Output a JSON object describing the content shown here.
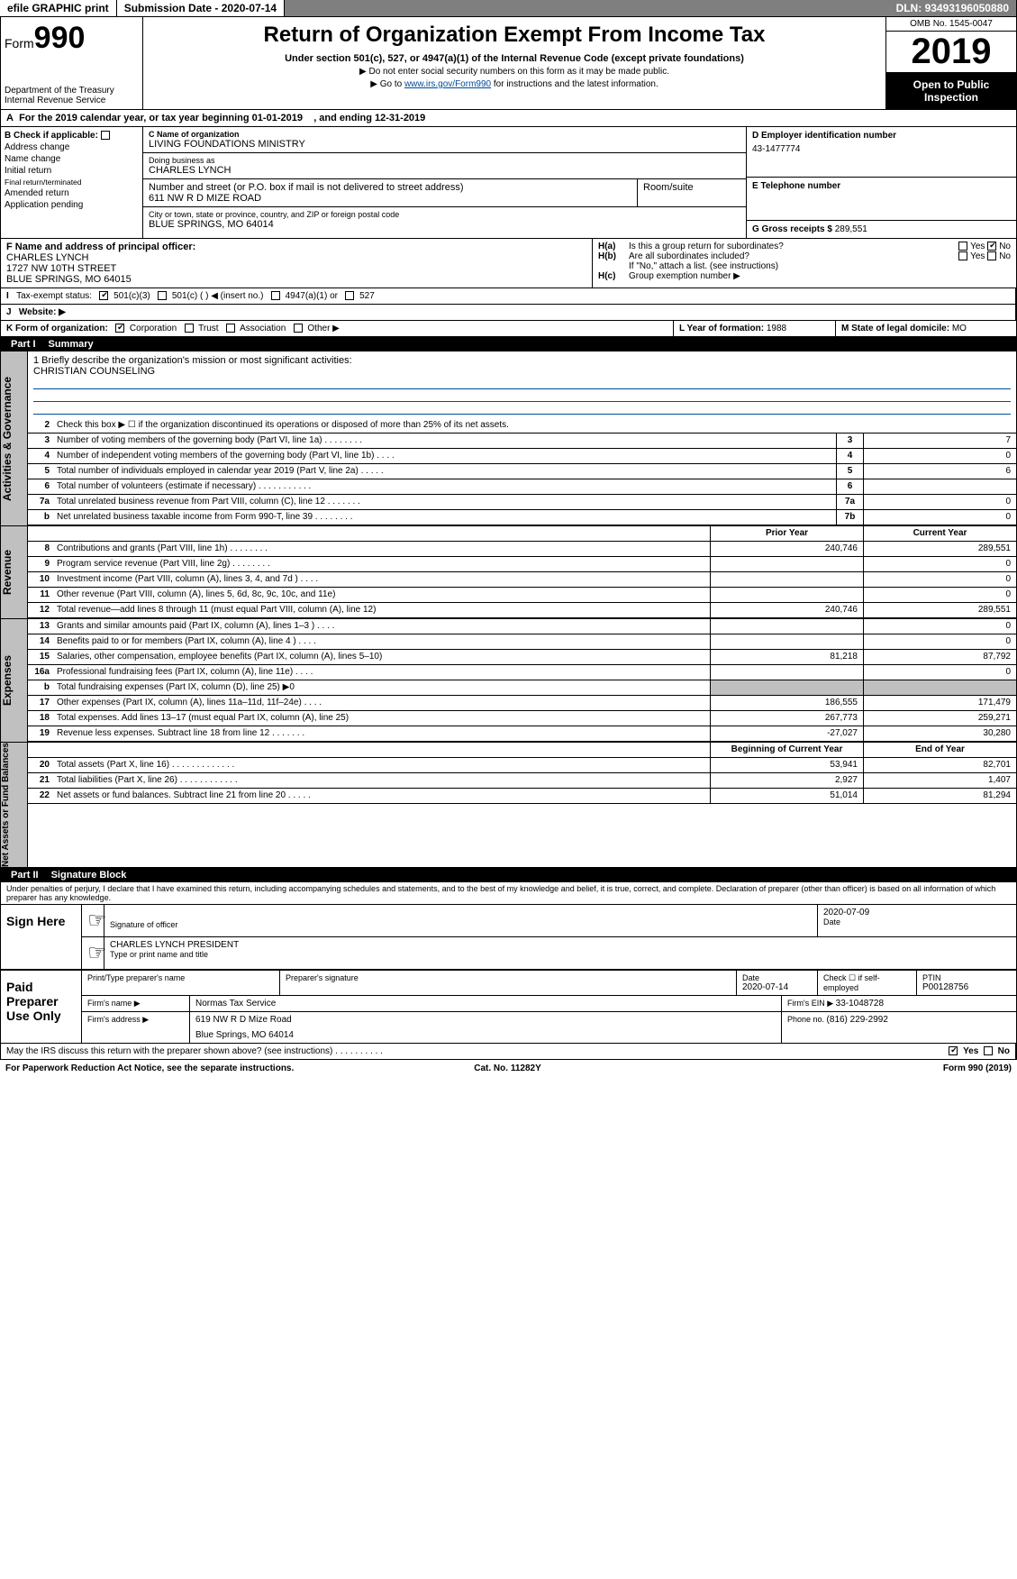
{
  "topbar": {
    "efile": "efile GRAPHIC print",
    "subdate_label": "Submission Date - ",
    "subdate": "2020-07-14",
    "dln_label": "DLN: ",
    "dln": "93493196050880"
  },
  "header": {
    "form_label": "Form",
    "form_no": "990",
    "dept": "Department of the Treasury\nInternal Revenue Service",
    "title": "Return of Organization Exempt From Income Tax",
    "sub1": "Under section 501(c), 527, or 4947(a)(1) of the Internal Revenue Code (except private foundations)",
    "sub2": "▶ Do not enter social security numbers on this form as it may be made public.",
    "sub3_pre": "▶ Go to ",
    "sub3_link": "www.irs.gov/Form990",
    "sub3_post": " for instructions and the latest information.",
    "omb": "OMB No. 1545-0047",
    "year": "2019",
    "open": "Open to Public Inspection"
  },
  "period": {
    "text": "For the 2019 calendar year, or tax year beginning 01-01-2019",
    "end": ", and ending 12-31-2019"
  },
  "boxB": {
    "label": "B Check if applicable:",
    "items": [
      "Address change",
      "Name change",
      "Initial return",
      "Final return/terminated",
      "Amended return",
      "Application pending"
    ]
  },
  "boxC": {
    "name_lbl": "C Name of organization",
    "name": "LIVING FOUNDATIONS MINISTRY",
    "dba_lbl": "Doing business as",
    "dba": "CHARLES LYNCH",
    "addr_lbl": "Number and street (or P.O. box if mail is not delivered to street address)",
    "addr": "611 NW R D MIZE ROAD",
    "room_lbl": "Room/suite",
    "city_lbl": "City or town, state or province, country, and ZIP or foreign postal code",
    "city": "BLUE SPRINGS, MO  64014"
  },
  "boxD": {
    "lbl": "D Employer identification number",
    "val": "43-1477774"
  },
  "boxE": {
    "lbl": "E Telephone number",
    "val": ""
  },
  "boxG": {
    "lbl": "G Gross receipts $ ",
    "val": "289,551"
  },
  "boxF": {
    "lbl": "F Name and address of principal officer:",
    "val": "CHARLES LYNCH\n1727 NW 10TH STREET\nBLUE SPRINGS, MO  64015"
  },
  "boxH": {
    "ha": "Is this a group return for subordinates?",
    "hb": "Are all subordinates included?",
    "hb2": "If \"No,\" attach a list. (see instructions)",
    "hc": "Group exemption number ▶",
    "yes": "Yes",
    "no": "No"
  },
  "lineI": {
    "lbl": "Tax-exempt status:",
    "opts": [
      "501(c)(3)",
      "501(c) (   ) ◀ (insert no.)",
      "4947(a)(1) or",
      "527"
    ]
  },
  "lineJ": {
    "lbl": "Website: ▶",
    "val": ""
  },
  "lineK": {
    "lbl": "K Form of organization:",
    "opts": [
      "Corporation",
      "Trust",
      "Association",
      "Other ▶"
    ]
  },
  "lineL": {
    "lbl": "L Year of formation: ",
    "val": "1988"
  },
  "lineM": {
    "lbl": "M State of legal domicile: ",
    "val": "MO"
  },
  "partI": {
    "num": "Part I",
    "title": "Summary"
  },
  "mission": {
    "q": "1  Briefly describe the organization's mission or most significant activities:",
    "val": "CHRISTIAN COUNSELING"
  },
  "gov_lines": [
    {
      "n": "2",
      "txt": "Check this box ▶ ☐ if the organization discontinued its operations or disposed of more than 25% of its net assets."
    },
    {
      "n": "3",
      "txt": "Number of voting members of the governing body (Part VI, line 1a)  .     .     .     .     .     .     .     .",
      "cell": "3",
      "val": "7"
    },
    {
      "n": "4",
      "txt": "Number of independent voting members of the governing body (Part VI, line 1b)  .     .     .     .",
      "cell": "4",
      "val": "0"
    },
    {
      "n": "5",
      "txt": "Total number of individuals employed in calendar year 2019 (Part V, line 2a)  .     .     .     .     .",
      "cell": "5",
      "val": "6"
    },
    {
      "n": "6",
      "txt": "Total number of volunteers (estimate if necessary)  .     .     .     .     .     .     .     .     .     .     .",
      "cell": "6",
      "val": ""
    },
    {
      "n": "7a",
      "txt": "Total unrelated business revenue from Part VIII, column (C), line 12  .     .     .     .     .     .     .",
      "cell": "7a",
      "val": "0"
    },
    {
      "n": "b",
      "txt": "Net unrelated business taxable income from Form 990-T, line 39  .     .     .     .     .     .     .     .",
      "cell": "7b",
      "val": "0"
    }
  ],
  "yr_hdr": {
    "prior": "Prior Year",
    "current": "Current Year"
  },
  "rev_lines": [
    {
      "n": "8",
      "txt": "Contributions and grants (Part VIII, line 1h)  .     .     .     .     .     .     .     .",
      "pv": "240,746",
      "cv": "289,551"
    },
    {
      "n": "9",
      "txt": "Program service revenue (Part VIII, line 2g)  .     .     .     .     .     .     .     .",
      "pv": "",
      "cv": "0"
    },
    {
      "n": "10",
      "txt": "Investment income (Part VIII, column (A), lines 3, 4, and 7d )  .     .     .     .",
      "pv": "",
      "cv": "0"
    },
    {
      "n": "11",
      "txt": "Other revenue (Part VIII, column (A), lines 5, 6d, 8c, 9c, 10c, and 11e)",
      "pv": "",
      "cv": "0"
    },
    {
      "n": "12",
      "txt": "Total revenue—add lines 8 through 11 (must equal Part VIII, column (A), line 12)",
      "pv": "240,746",
      "cv": "289,551"
    }
  ],
  "exp_lines": [
    {
      "n": "13",
      "txt": "Grants and similar amounts paid (Part IX, column (A), lines 1–3 )  .     .     .     .",
      "pv": "",
      "cv": "0"
    },
    {
      "n": "14",
      "txt": "Benefits paid to or for members (Part IX, column (A), line 4 )  .     .     .     .",
      "pv": "",
      "cv": "0"
    },
    {
      "n": "15",
      "txt": "Salaries, other compensation, employee benefits (Part IX, column (A), lines 5–10)",
      "pv": "81,218",
      "cv": "87,792"
    },
    {
      "n": "16a",
      "txt": "Professional fundraising fees (Part IX, column (A), line 11e)  .     .     .     .",
      "pv": "",
      "cv": "0"
    },
    {
      "n": "b",
      "txt": "Total fundraising expenses (Part IX, column (D), line 25) ▶0",
      "pv": "gray",
      "cv": "gray"
    },
    {
      "n": "17",
      "txt": "Other expenses (Part IX, column (A), lines 11a–11d, 11f–24e)  .     .     .     .",
      "pv": "186,555",
      "cv": "171,479"
    },
    {
      "n": "18",
      "txt": "Total expenses. Add lines 13–17 (must equal Part IX, column (A), line 25)",
      "pv": "267,773",
      "cv": "259,271"
    },
    {
      "n": "19",
      "txt": "Revenue less expenses. Subtract line 18 from line 12  .     .     .     .     .     .     .",
      "pv": "-27,027",
      "cv": "30,280"
    }
  ],
  "na_hdr": {
    "prior": "Beginning of Current Year",
    "current": "End of Year"
  },
  "na_lines": [
    {
      "n": "20",
      "txt": "Total assets (Part X, line 16)  .     .     .     .     .     .     .     .     .     .     .     .     .",
      "pv": "53,941",
      "cv": "82,701"
    },
    {
      "n": "21",
      "txt": "Total liabilities (Part X, line 26)  .     .     .     .     .     .     .     .     .     .     .     .",
      "pv": "2,927",
      "cv": "1,407"
    },
    {
      "n": "22",
      "txt": "Net assets or fund balances. Subtract line 21 from line 20  .     .     .     .     .",
      "pv": "51,014",
      "cv": "81,294"
    }
  ],
  "partII": {
    "num": "Part II",
    "title": "Signature Block"
  },
  "perjury": "Under penalties of perjury, I declare that I have examined this return, including accompanying schedules and statements, and to the best of my knowledge and belief, it is true, correct, and complete. Declaration of preparer (other than officer) is based on all information of which preparer has any knowledge.",
  "sign": {
    "here": "Sign Here",
    "sig_off": "Signature of officer",
    "date": "2020-07-09",
    "date_lbl": "Date",
    "name": "CHARLES LYNCH  PRESIDENT",
    "name_lbl": "Type or print name and title"
  },
  "paid": {
    "here": "Paid Preparer Use Only",
    "h1": "Print/Type preparer's name",
    "h2": "Preparer's signature",
    "h3": "Date",
    "h4": "Check ☐ if self-employed",
    "h5": "PTIN",
    "date": "2020-07-14",
    "ptin": "P00128756",
    "firm_lbl": "Firm's name    ▶",
    "firm": "Normas Tax Service",
    "ein_lbl": "Firm's EIN ▶ ",
    "ein": "33-1048728",
    "addr_lbl": "Firm's address ▶",
    "addr1": "619 NW R D Mize Road",
    "addr2": "Blue Springs, MO  64014",
    "phone_lbl": "Phone no. ",
    "phone": "(816) 229-2992"
  },
  "discuss": {
    "q": "May the IRS discuss this return with the preparer shown above? (see instructions)   .     .     .     .     .     .     .     .     .     .",
    "yes": "Yes",
    "no": "No"
  },
  "footer": {
    "left": "For Paperwork Reduction Act Notice, see the separate instructions.",
    "mid": "Cat. No. 11282Y",
    "right": "Form 990 (2019)"
  },
  "section_labels": {
    "gov": "Activities & Governance",
    "rev": "Revenue",
    "exp": "Expenses",
    "na": "Net Assets or Fund Balances"
  }
}
